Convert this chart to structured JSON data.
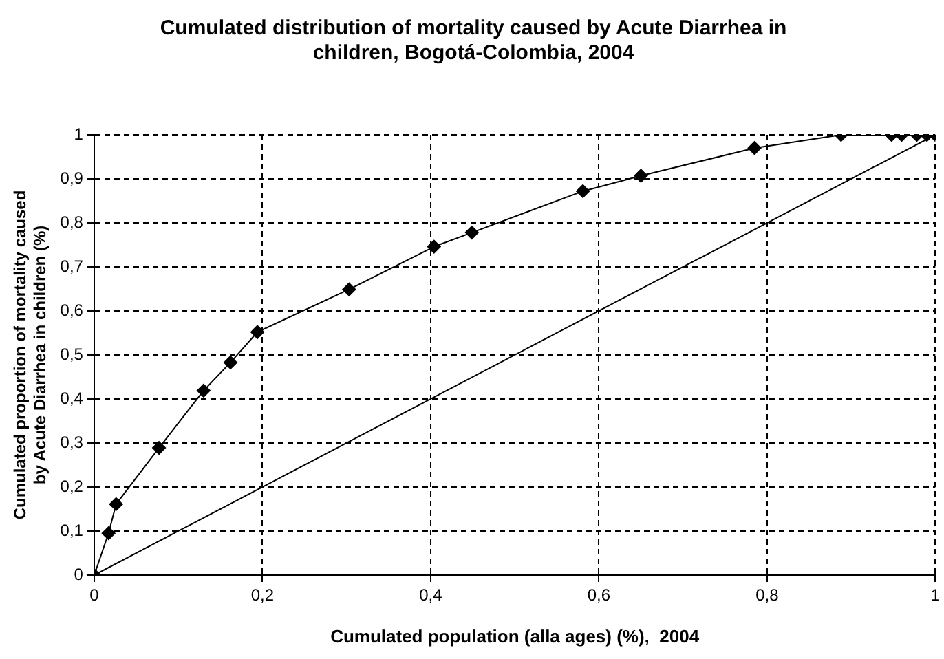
{
  "chart_data": {
    "type": "line",
    "title": "Cumulated distribution of mortality caused by Acute Diarrhea in children, Bogotá-Colombia, 2004",
    "xlabel": "Cumulated population (alla ages) (%),  2004",
    "ylabel": "Cumulated proportion of mortality caused by Acute Diarrhea in children (%)",
    "series": [
      {
        "color": "#000000",
        "marker": "diamond",
        "x": [
          0,
          0.017,
          0.026,
          0.077,
          0.13,
          0.162,
          0.194,
          0.303,
          0.404,
          0.449,
          0.581,
          0.65,
          0.785,
          0.888,
          0.948,
          0.96,
          0.978,
          0.99,
          1
        ],
        "values": [
          0,
          0.095,
          0.161,
          0.289,
          0.419,
          0.483,
          0.552,
          0.649,
          0.746,
          0.778,
          0.872,
          0.907,
          0.97,
          1,
          1,
          1,
          1,
          1,
          1
        ]
      },
      {
        "color": "#000000",
        "marker": "none",
        "x": [
          0,
          1
        ],
        "values": [
          0,
          1
        ]
      }
    ],
    "xlim": [
      0,
      1
    ],
    "ylim": [
      0,
      1
    ],
    "xticks": [
      0,
      {
        "value": 0.2,
        "label": "0,2"
      },
      {
        "value": 0.4,
        "label": "0,4"
      },
      {
        "value": 0.6,
        "label": "0,6"
      },
      {
        "value": 0.8,
        "label": "0,8"
      },
      1
    ],
    "yticks": [
      0,
      {
        "value": 0.1,
        "label": "0,1"
      },
      {
        "value": 0.2,
        "label": "0,2"
      },
      {
        "value": 0.3,
        "label": "0,3"
      },
      {
        "value": 0.4,
        "label": "0,4"
      },
      {
        "value": 0.5,
        "label": "0,5"
      },
      {
        "value": 0.6,
        "label": "0,6"
      },
      {
        "value": 0.7,
        "label": "0,7"
      },
      {
        "value": 0.8,
        "label": "0,8"
      },
      {
        "value": 0.9,
        "label": "0,9"
      },
      1
    ],
    "grid": true,
    "legend": false,
    "line_style": "solid"
  }
}
